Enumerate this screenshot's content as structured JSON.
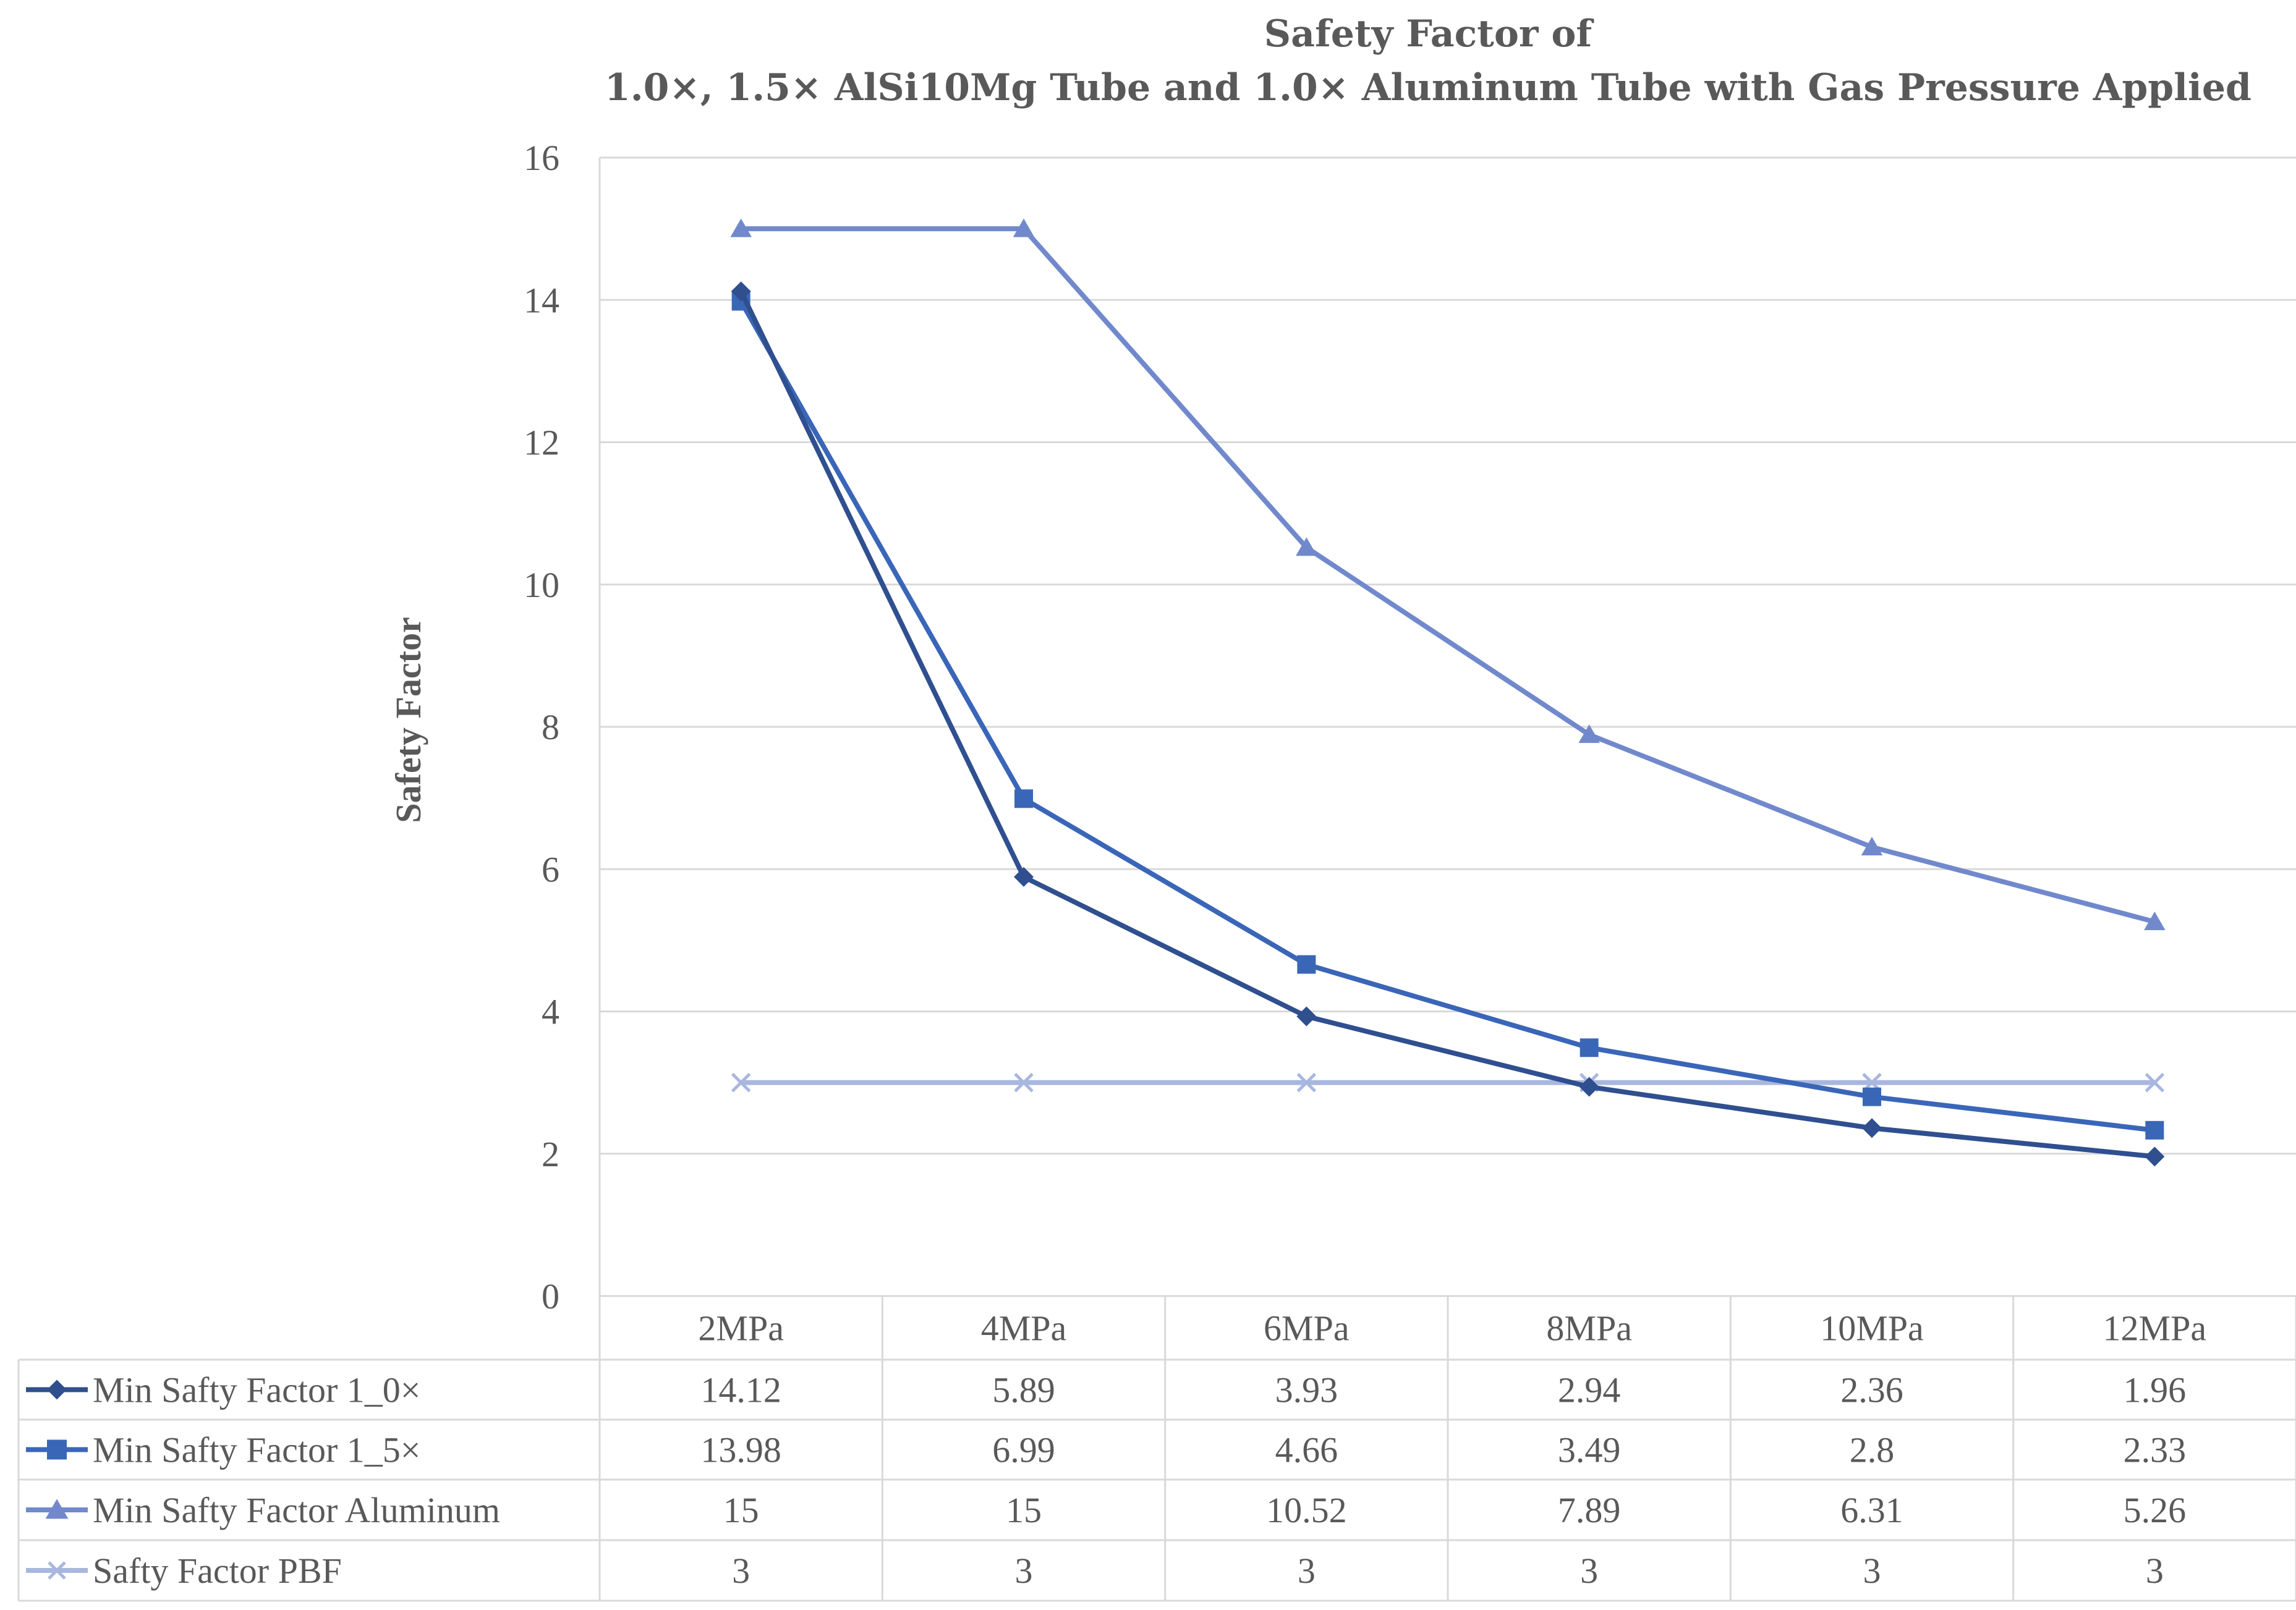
{
  "chart_data": {
    "type": "line",
    "title_line1": "Safety Factor of",
    "title_line2": "1.0×, 1.5× AlSi10Mg Tube and 1.0× Aluminum Tube with Gas Pressure Applied",
    "xlabel": "",
    "ylabel": "Safety Factor",
    "ylim": [
      0,
      16
    ],
    "yticks": [
      "0",
      "2",
      "4",
      "6",
      "8",
      "10",
      "12",
      "14",
      "16"
    ],
    "categories": [
      "2MPa",
      "4MPa",
      "6MPa",
      "8MPa",
      "10MPa",
      "12MPa"
    ],
    "grid": true,
    "legend": "data-table",
    "series": [
      {
        "name": "Min Safty Factor 1_0×",
        "marker": "diamond",
        "color": "#2F4F8F",
        "values": [
          14.12,
          5.89,
          3.93,
          2.94,
          2.36,
          1.96
        ],
        "labels": [
          "14.12",
          "5.89",
          "3.93",
          "2.94",
          "2.36",
          "1.96"
        ]
      },
      {
        "name": "Min Safty Factor 1_5×",
        "marker": "square",
        "color": "#3A66B8",
        "values": [
          13.98,
          6.99,
          4.66,
          3.49,
          2.8,
          2.33
        ],
        "labels": [
          "13.98",
          "6.99",
          "4.66",
          "3.49",
          "2.8",
          "2.33"
        ]
      },
      {
        "name": "Min Safty Factor Aluminum",
        "marker": "triangle",
        "color": "#7189CC",
        "values": [
          15,
          15,
          10.52,
          7.89,
          6.31,
          5.26
        ],
        "labels": [
          "15",
          "15",
          "10.52",
          "7.89",
          "6.31",
          "5.26"
        ]
      },
      {
        "name": "Safty Factor PBF",
        "marker": "x",
        "color": "#A9B7DF",
        "values": [
          3,
          3,
          3,
          3,
          3,
          3
        ],
        "labels": [
          "3",
          "3",
          "3",
          "3",
          "3",
          "3"
        ]
      }
    ]
  }
}
